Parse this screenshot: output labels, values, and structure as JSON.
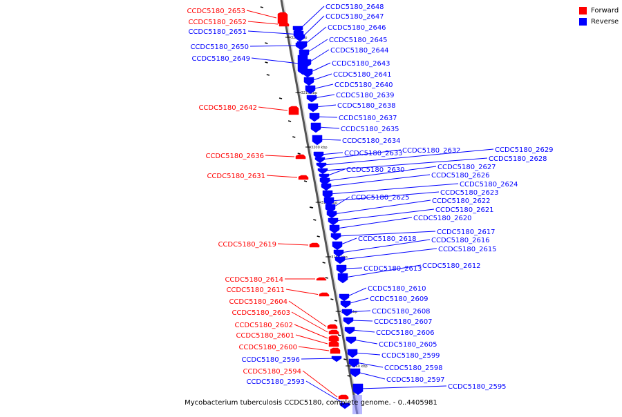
{
  "legend": {
    "forward_label": "Forward",
    "reverse_label": "Reverse",
    "forward_color": "#ff0000",
    "reverse_color": "#0000ff"
  },
  "caption": "Mycobacterium tuberculosis CCDC5180, complete genome. - 0..4405981",
  "ticks": [
    "3220 kbp",
    "3210 kbp",
    "3200 kbp",
    "3190 kbp",
    "3180 kbp",
    "3170 kbp",
    "3160 kbp"
  ],
  "genes": [
    {
      "label": "CCDC5180_2653",
      "strand": "forward"
    },
    {
      "label": "CCDC5180_2652",
      "strand": "forward"
    },
    {
      "label": "CCDC5180_2651",
      "strand": "reverse"
    },
    {
      "label": "CCDC5180_2650",
      "strand": "reverse"
    },
    {
      "label": "CCDC5180_2649",
      "strand": "reverse"
    },
    {
      "label": "CCDC5180_2648",
      "strand": "reverse"
    },
    {
      "label": "CCDC5180_2647",
      "strand": "reverse"
    },
    {
      "label": "CCDC5180_2646",
      "strand": "reverse"
    },
    {
      "label": "CCDC5180_2645",
      "strand": "reverse"
    },
    {
      "label": "CCDC5180_2644",
      "strand": "reverse"
    },
    {
      "label": "CCDC5180_2643",
      "strand": "reverse"
    },
    {
      "label": "CCDC5180_2641",
      "strand": "reverse"
    },
    {
      "label": "CCDC5180_2640",
      "strand": "reverse"
    },
    {
      "label": "CCDC5180_2639",
      "strand": "reverse"
    },
    {
      "label": "CCDC5180_2642",
      "strand": "forward"
    },
    {
      "label": "CCDC5180_2638",
      "strand": "reverse"
    },
    {
      "label": "CCDC5180_2637",
      "strand": "reverse"
    },
    {
      "label": "CCDC5180_2635",
      "strand": "reverse"
    },
    {
      "label": "CCDC5180_2634",
      "strand": "reverse"
    },
    {
      "label": "CCDC5180_2636",
      "strand": "forward"
    },
    {
      "label": "CCDC5180_2633",
      "strand": "reverse"
    },
    {
      "label": "CCDC5180_2632",
      "strand": "reverse"
    },
    {
      "label": "CCDC5180_2629",
      "strand": "reverse"
    },
    {
      "label": "CCDC5180_2628",
      "strand": "reverse"
    },
    {
      "label": "CCDC5180_2630",
      "strand": "reverse"
    },
    {
      "label": "CCDC5180_2627",
      "strand": "reverse"
    },
    {
      "label": "CCDC5180_2631",
      "strand": "forward"
    },
    {
      "label": "CCDC5180_2626",
      "strand": "reverse"
    },
    {
      "label": "CCDC5180_2624",
      "strand": "reverse"
    },
    {
      "label": "CCDC5180_2623",
      "strand": "reverse"
    },
    {
      "label": "CCDC5180_2625",
      "strand": "reverse"
    },
    {
      "label": "CCDC5180_2622",
      "strand": "reverse"
    },
    {
      "label": "CCDC5180_2621",
      "strand": "reverse"
    },
    {
      "label": "CCDC5180_2620",
      "strand": "reverse"
    },
    {
      "label": "CCDC5180_2617",
      "strand": "reverse"
    },
    {
      "label": "CCDC5180_2618",
      "strand": "reverse"
    },
    {
      "label": "CCDC5180_2616",
      "strand": "reverse"
    },
    {
      "label": "CCDC5180_2619",
      "strand": "forward"
    },
    {
      "label": "CCDC5180_2615",
      "strand": "reverse"
    },
    {
      "label": "CCDC5180_2613",
      "strand": "reverse"
    },
    {
      "label": "CCDC5180_2612",
      "strand": "reverse"
    },
    {
      "label": "CCDC5180_2614",
      "strand": "forward"
    },
    {
      "label": "CCDC5180_2610",
      "strand": "reverse"
    },
    {
      "label": "CCDC5180_2611",
      "strand": "forward"
    },
    {
      "label": "CCDC5180_2609",
      "strand": "reverse"
    },
    {
      "label": "CCDC5180_2604",
      "strand": "forward"
    },
    {
      "label": "CCDC5180_2608",
      "strand": "reverse"
    },
    {
      "label": "CCDC5180_2603",
      "strand": "forward"
    },
    {
      "label": "CCDC5180_2607",
      "strand": "reverse"
    },
    {
      "label": "CCDC5180_2602",
      "strand": "forward"
    },
    {
      "label": "CCDC5180_2606",
      "strand": "reverse"
    },
    {
      "label": "CCDC5180_2601",
      "strand": "forward"
    },
    {
      "label": "CCDC5180_2605",
      "strand": "reverse"
    },
    {
      "label": "CCDC5180_2600",
      "strand": "forward"
    },
    {
      "label": "CCDC5180_2599",
      "strand": "reverse"
    },
    {
      "label": "CCDC5180_2596",
      "strand": "reverse"
    },
    {
      "label": "CCDC5180_2598",
      "strand": "reverse"
    },
    {
      "label": "CCDC5180_2594",
      "strand": "forward"
    },
    {
      "label": "CCDC5180_2597",
      "strand": "reverse"
    },
    {
      "label": "CCDC5180_2593",
      "strand": "reverse"
    },
    {
      "label": "CCDC5180_2595",
      "strand": "reverse"
    }
  ]
}
